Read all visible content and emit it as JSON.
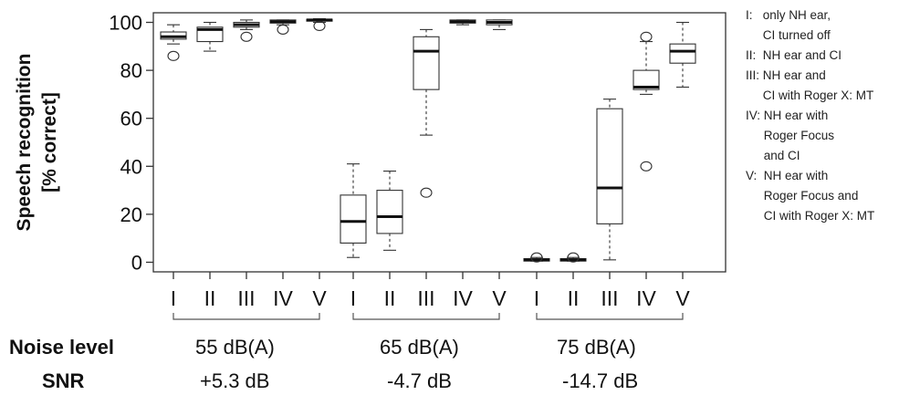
{
  "chart_data": {
    "type": "box",
    "ylabel_line1": "Speech recognition",
    "ylabel_line2": "[% correct]",
    "ylim": [
      -4,
      104
    ],
    "yticks": [
      "0",
      "20",
      "40",
      "60",
      "80",
      "100"
    ],
    "grid": false,
    "legend_position": "right, outside",
    "groups": [
      {
        "noise_level": "55 dB(A)",
        "snr": "+5.3 dB",
        "boxes": [
          {
            "label": "I",
            "whisker_low": 91,
            "q1": 93,
            "median": 94,
            "q3": 96,
            "whisker_high": 99,
            "outliers": [
              86
            ]
          },
          {
            "label": "II",
            "whisker_low": 88,
            "q1": 92,
            "median": 97,
            "q3": 98,
            "whisker_high": 100,
            "outliers": []
          },
          {
            "label": "III",
            "whisker_low": 97,
            "q1": 98,
            "median": 99,
            "q3": 100,
            "whisker_high": 101,
            "outliers": [
              94
            ]
          },
          {
            "label": "IV",
            "whisker_low": 99,
            "q1": 99.7,
            "median": 100.3,
            "q3": 101,
            "whisker_high": 101,
            "outliers": [
              97
            ]
          },
          {
            "label": "V",
            "whisker_low": 100,
            "q1": 100.5,
            "median": 101,
            "q3": 101.3,
            "whisker_high": 101.5,
            "outliers": [
              98.5
            ]
          }
        ]
      },
      {
        "noise_level": "65 dB(A)",
        "snr": "-4.7 dB",
        "boxes": [
          {
            "label": "I",
            "whisker_low": 2,
            "q1": 8,
            "median": 17,
            "q3": 28,
            "whisker_high": 41,
            "outliers": []
          },
          {
            "label": "II",
            "whisker_low": 5,
            "q1": 12,
            "median": 19,
            "q3": 30,
            "whisker_high": 38,
            "outliers": []
          },
          {
            "label": "III",
            "whisker_low": 53,
            "q1": 72,
            "median": 88,
            "q3": 94,
            "whisker_high": 97,
            "outliers": [
              29
            ]
          },
          {
            "label": "IV",
            "whisker_low": 99,
            "q1": 99.7,
            "median": 100.3,
            "q3": 101,
            "whisker_high": 101,
            "outliers": []
          },
          {
            "label": "V",
            "whisker_low": 97,
            "q1": 99,
            "median": 100,
            "q3": 101,
            "whisker_high": 101,
            "outliers": []
          }
        ]
      },
      {
        "noise_level": "75 dB(A)",
        "snr": "-14.7 dB",
        "boxes": [
          {
            "label": "I",
            "whisker_low": 0.5,
            "q1": 0.5,
            "median": 1,
            "q3": 1.5,
            "whisker_high": 2,
            "outliers": [
              2
            ]
          },
          {
            "label": "II",
            "whisker_low": 0.5,
            "q1": 0.5,
            "median": 1,
            "q3": 1.5,
            "whisker_high": 2,
            "outliers": [
              2
            ]
          },
          {
            "label": "III",
            "whisker_low": 1,
            "q1": 16,
            "median": 31,
            "q3": 64,
            "whisker_high": 68,
            "outliers": []
          },
          {
            "label": "IV",
            "whisker_low": 70,
            "q1": 72,
            "median": 73,
            "q3": 80,
            "whisker_high": 92,
            "outliers": [
              94,
              40
            ]
          },
          {
            "label": "V",
            "whisker_low": 73,
            "q1": 83,
            "median": 88,
            "q3": 91,
            "whisker_high": 100,
            "outliers": []
          }
        ]
      }
    ]
  },
  "bottom": {
    "noise_label": "Noise level",
    "snr_label": "SNR"
  },
  "legend": [
    {
      "key": "I:   ",
      "lines": [
        "only NH ear,",
        "CI turned off"
      ]
    },
    {
      "key": "II:  ",
      "lines": [
        "NH ear and CI"
      ]
    },
    {
      "key": "III: ",
      "lines": [
        "NH ear and",
        "CI with Roger X: MT"
      ]
    },
    {
      "key": "IV: ",
      "lines": [
        "NH ear with",
        "Roger Focus",
        "and CI"
      ]
    },
    {
      "key": "V:  ",
      "lines": [
        "NH ear with",
        "Roger Focus and",
        "CI with Roger X: MT"
      ]
    }
  ]
}
